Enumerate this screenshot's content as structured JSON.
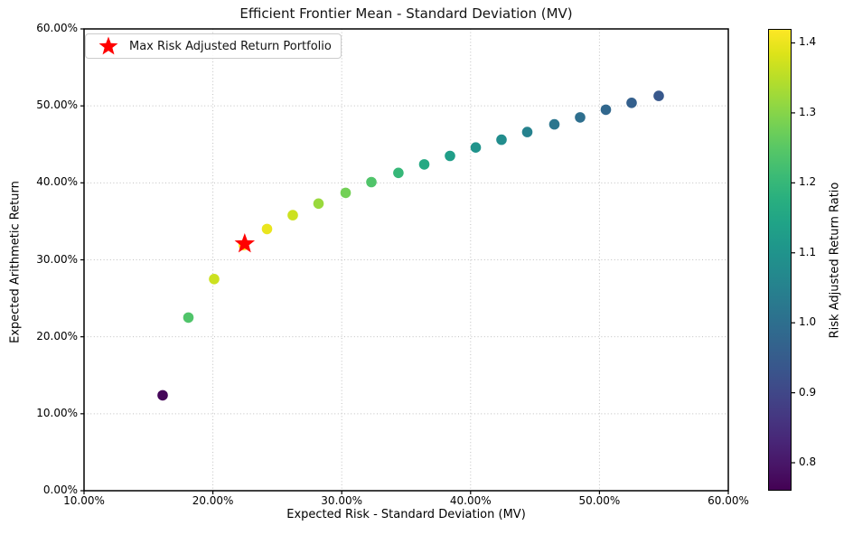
{
  "title": "Efficient Frontier Mean - Standard Deviation (MV)",
  "legend": {
    "label": "Max Risk Adjusted Return Portfolio",
    "position": "upper left",
    "marker": "star",
    "marker_color": "#ff0000"
  },
  "x_axis": {
    "label": "Expected Risk - Standard Deviation (MV)",
    "tick_labels": [
      "10.00%",
      "20.00%",
      "30.00%",
      "40.00%",
      "50.00%",
      "60.00%"
    ],
    "tick_values": [
      10,
      20,
      30,
      40,
      50,
      60
    ],
    "range_pct": [
      10,
      60
    ]
  },
  "y_axis": {
    "label": "Expected Arithmetic Return",
    "tick_labels": [
      "0.00%",
      "10.00%",
      "20.00%",
      "30.00%",
      "40.00%",
      "50.00%",
      "60.00%"
    ],
    "tick_values": [
      0,
      10,
      20,
      30,
      40,
      50,
      60
    ],
    "range_pct": [
      0,
      60
    ]
  },
  "colorbar": {
    "label": "Risk Adjusted Return Ratio",
    "tick_labels": [
      "0.8",
      "0.9",
      "1.0",
      "1.1",
      "1.2",
      "1.3",
      "1.4"
    ],
    "tick_values": [
      0.8,
      0.9,
      1.0,
      1.1,
      1.2,
      1.3,
      1.4
    ],
    "vmin": 0.76,
    "vmax": 1.42,
    "colormap": "viridis"
  },
  "colors": {
    "highlight": "#ff0000",
    "grid": "#c0c0c0",
    "axis": "#000000",
    "background": "#ffffff",
    "viridis_stops": [
      "#440154",
      "#481567",
      "#482677",
      "#453781",
      "#404788",
      "#39568c",
      "#33638d",
      "#2d708e",
      "#287d8e",
      "#238a8d",
      "#1f968b",
      "#20a387",
      "#29af7f",
      "#3cbb75",
      "#55c667",
      "#73d055",
      "#95d840",
      "#b8de29",
      "#dce319",
      "#fde725"
    ]
  },
  "chart_data": {
    "type": "scatter",
    "title": "Efficient Frontier Mean - Standard Deviation (MV)",
    "xlabel": "Expected Risk - Standard Deviation (MV)",
    "ylabel": "Expected Arithmetic Return",
    "xlim": [
      10,
      60
    ],
    "ylim": [
      0,
      60
    ],
    "grid": "dotted",
    "legend_position": "upper left",
    "colorbar_label": "Risk Adjusted Return Ratio",
    "color_by": "ratio",
    "color_range": [
      0.76,
      1.42
    ],
    "points": [
      {
        "risk_pct": 16.1,
        "return_pct": 12.4,
        "ratio": 0.77
      },
      {
        "risk_pct": 18.1,
        "return_pct": 22.5,
        "ratio": 1.24
      },
      {
        "risk_pct": 20.1,
        "return_pct": 27.5,
        "ratio": 1.37
      },
      {
        "risk_pct": 22.4,
        "return_pct": 31.9,
        "ratio": 1.42
      },
      {
        "risk_pct": 24.2,
        "return_pct": 34.0,
        "ratio": 1.4
      },
      {
        "risk_pct": 26.2,
        "return_pct": 35.8,
        "ratio": 1.37
      },
      {
        "risk_pct": 28.2,
        "return_pct": 37.3,
        "ratio": 1.32
      },
      {
        "risk_pct": 30.3,
        "return_pct": 38.7,
        "ratio": 1.28
      },
      {
        "risk_pct": 32.3,
        "return_pct": 40.1,
        "ratio": 1.24
      },
      {
        "risk_pct": 34.4,
        "return_pct": 41.3,
        "ratio": 1.2
      },
      {
        "risk_pct": 36.4,
        "return_pct": 42.4,
        "ratio": 1.16
      },
      {
        "risk_pct": 38.4,
        "return_pct": 43.5,
        "ratio": 1.13
      },
      {
        "risk_pct": 40.4,
        "return_pct": 44.6,
        "ratio": 1.1
      },
      {
        "risk_pct": 42.4,
        "return_pct": 45.6,
        "ratio": 1.08
      },
      {
        "risk_pct": 44.4,
        "return_pct": 46.6,
        "ratio": 1.05
      },
      {
        "risk_pct": 46.5,
        "return_pct": 47.6,
        "ratio": 1.02
      },
      {
        "risk_pct": 48.5,
        "return_pct": 48.5,
        "ratio": 1.0
      },
      {
        "risk_pct": 50.5,
        "return_pct": 49.5,
        "ratio": 0.98
      },
      {
        "risk_pct": 52.5,
        "return_pct": 50.4,
        "ratio": 0.96
      },
      {
        "risk_pct": 54.6,
        "return_pct": 51.3,
        "ratio": 0.94
      }
    ],
    "highlight_point": {
      "risk_pct": 22.4,
      "return_pct": 31.9,
      "ratio": 1.42,
      "label": "Max Risk Adjusted Return Portfolio",
      "marker": "star"
    }
  }
}
